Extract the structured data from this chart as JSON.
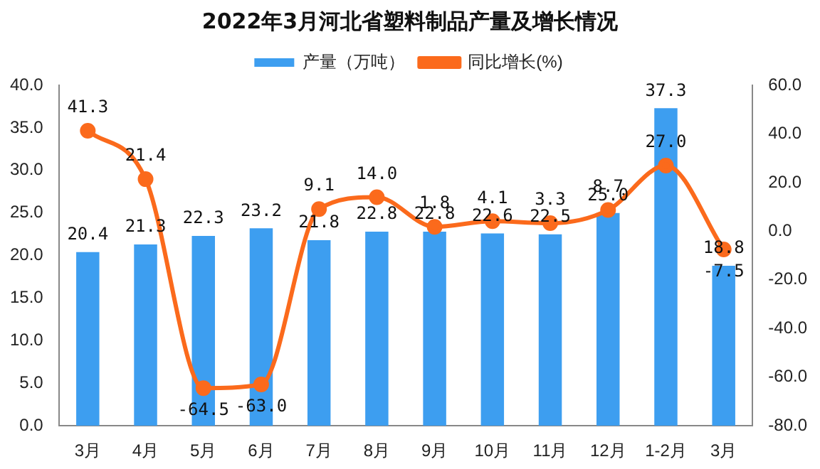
{
  "chart_data": {
    "type": "bar",
    "title": "2022年3月河北省塑料制品产量及增长情况",
    "categories": [
      "3月",
      "4月",
      "5月",
      "6月",
      "7月",
      "8月",
      "9月",
      "10月",
      "11月",
      "12月",
      "1-2月",
      "3月"
    ],
    "series": [
      {
        "name": "产量（万吨）",
        "color": "#3d9ef0",
        "values": [
          20.4,
          21.3,
          22.3,
          23.2,
          21.8,
          22.8,
          22.8,
          22.6,
          22.5,
          25.0,
          37.3,
          18.8
        ],
        "value_labels": [
          "20.4",
          "21.3",
          "22.3",
          "23.2",
          "21.8",
          "22.8",
          "22.8",
          "22.6",
          "22.5",
          "25.0",
          "37.3",
          "18.8"
        ]
      },
      {
        "name": "同比增长(%)",
        "type": "line",
        "axis": "y2",
        "color": "#fb6a1c",
        "values": [
          41.3,
          21.4,
          -64.5,
          -63.0,
          9.1,
          14.0,
          1.8,
          4.1,
          3.3,
          8.7,
          27.0,
          -7.5
        ],
        "value_labels": [
          "41.3",
          "21.4",
          "-64.5",
          "-63.0",
          "9.1",
          "14.0",
          "1.8",
          "4.1",
          "3.3",
          "8.7",
          "27.0",
          "-7.5"
        ]
      }
    ],
    "ylim": [
      0,
      40
    ],
    "yticks": [
      {
        "value": 0,
        "label": "0.0"
      },
      {
        "value": 5,
        "label": "5.0"
      },
      {
        "value": 10,
        "label": "10.0"
      },
      {
        "value": 15,
        "label": "15.0"
      },
      {
        "value": 20,
        "label": "20.0"
      },
      {
        "value": 25,
        "label": "25.0"
      },
      {
        "value": 30,
        "label": "30.0"
      },
      {
        "value": 35,
        "label": "35.0"
      },
      {
        "value": 40,
        "label": "40.0"
      }
    ],
    "y2lim": [
      -80,
      60
    ],
    "y2ticks": [
      {
        "value": -80,
        "label": "-80.0"
      },
      {
        "value": -60,
        "label": "-60.0"
      },
      {
        "value": -40,
        "label": "-40.0"
      },
      {
        "value": -20,
        "label": "-20.0"
      },
      {
        "value": 0,
        "label": "0.0"
      },
      {
        "value": 20,
        "label": "20.0"
      },
      {
        "value": 40,
        "label": "40.0"
      },
      {
        "value": 60,
        "label": "60.0"
      }
    ],
    "grid": false,
    "legend": "top",
    "marker": "circle",
    "line_style": "solid"
  }
}
